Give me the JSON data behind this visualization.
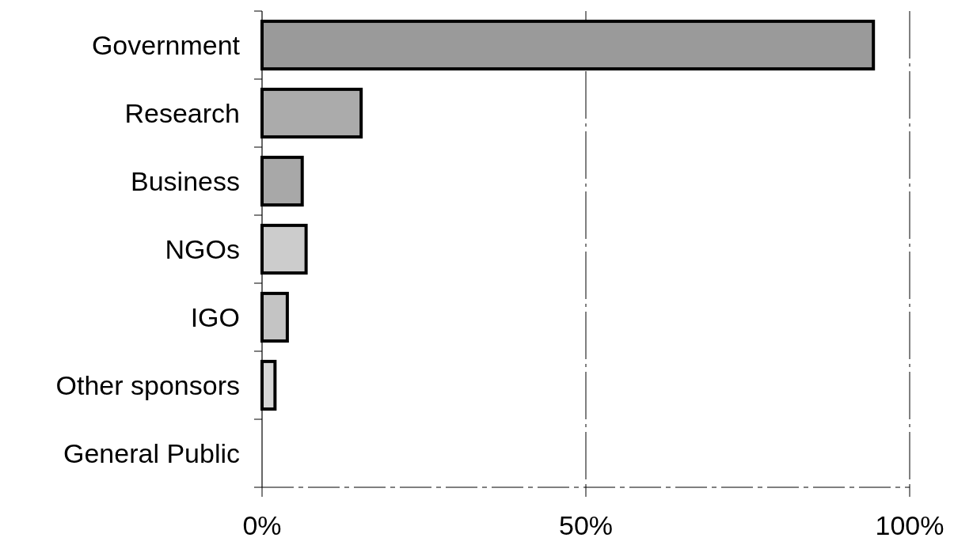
{
  "chart_data": {
    "type": "bar",
    "orientation": "horizontal",
    "categories": [
      "Government",
      "Research",
      "Business",
      "NGOs",
      "IGO",
      "Other sponsors",
      "General Public"
    ],
    "values": [
      94.4,
      15.3,
      6.2,
      6.8,
      3.9,
      2.0,
      0
    ],
    "colors": [
      "#9a9a9a",
      "#ababab",
      "#a8a8a8",
      "#cccccc",
      "#c4c4c4",
      "#d6d6d6",
      "#d6d6d6"
    ],
    "xlim": [
      0,
      100
    ],
    "xticks": [
      {
        "value": 0,
        "label": "0%"
      },
      {
        "value": 50,
        "label": "50%"
      },
      {
        "value": 100,
        "label": "100%"
      }
    ],
    "grid": "x"
  }
}
